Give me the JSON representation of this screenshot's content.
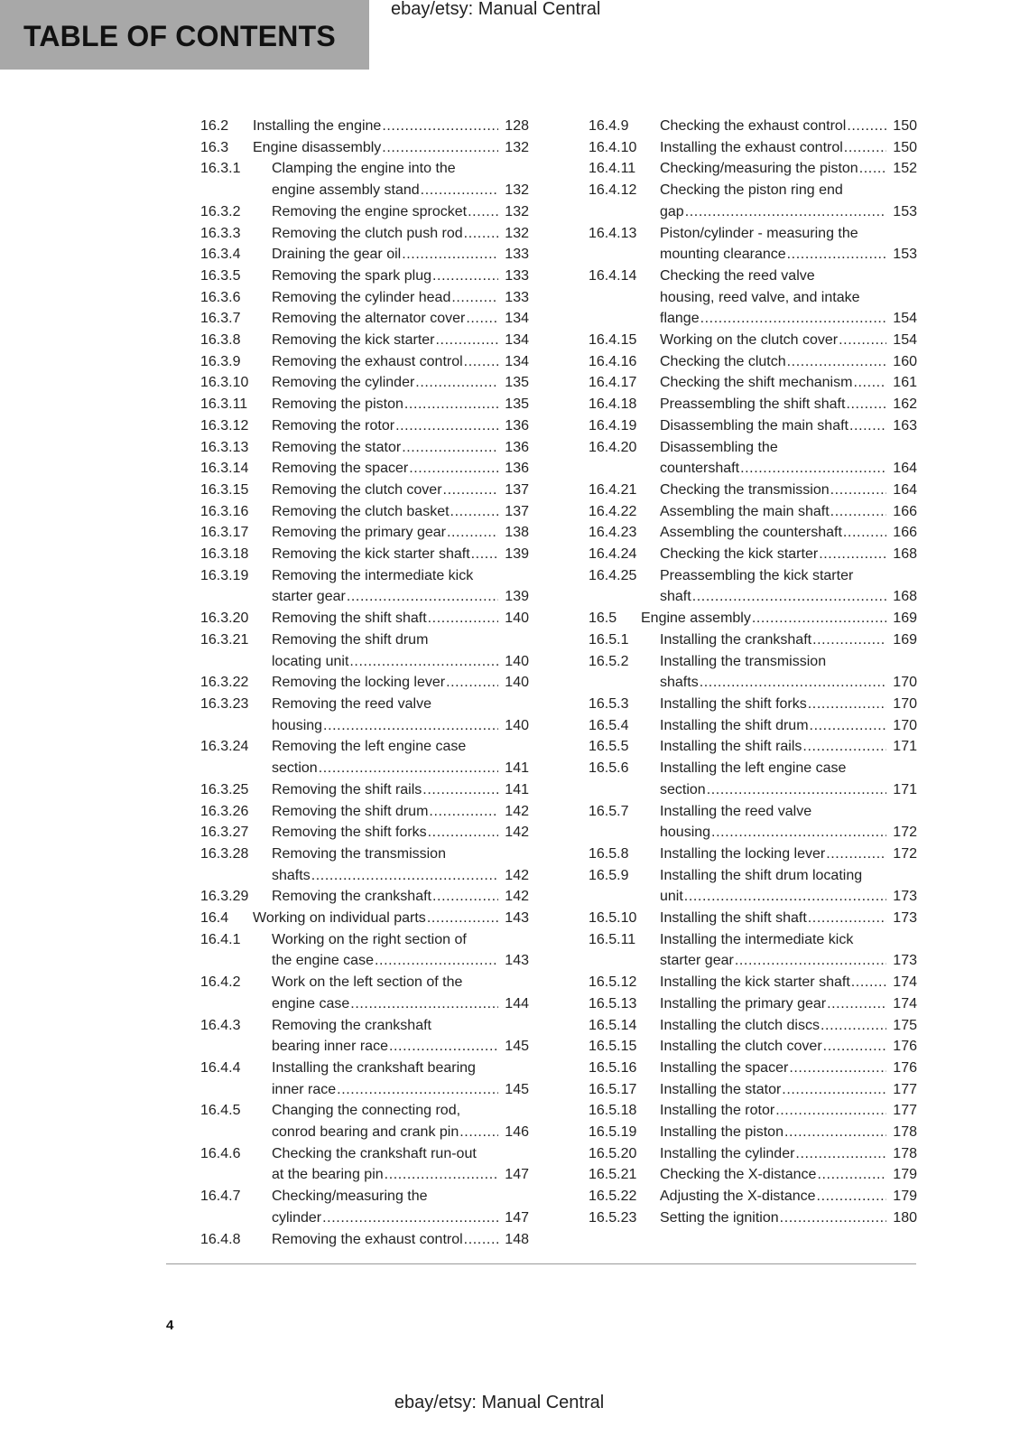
{
  "header": {
    "title": "TABLE OF CONTENTS",
    "watermark": "ebay/etsy: Manual Central"
  },
  "footer": {
    "page_number": "4",
    "watermark": "ebay/etsy: Manual Central"
  },
  "columns": [
    [
      {
        "num": "16.2",
        "level": 2,
        "lines": [
          "Installing the engine"
        ],
        "page": "128"
      },
      {
        "num": "16.3",
        "level": 2,
        "lines": [
          "Engine disassembly"
        ],
        "page": "132"
      },
      {
        "num": "16.3.1",
        "level": 3,
        "lines": [
          "Clamping the engine into the",
          "engine assembly stand"
        ],
        "page": "132"
      },
      {
        "num": "16.3.2",
        "level": 3,
        "lines": [
          "Removing the engine sprocket"
        ],
        "page": "132"
      },
      {
        "num": "16.3.3",
        "level": 3,
        "lines": [
          "Removing the clutch push rod"
        ],
        "page": "132"
      },
      {
        "num": "16.3.4",
        "level": 3,
        "lines": [
          "Draining the gear oil"
        ],
        "page": "133"
      },
      {
        "num": "16.3.5",
        "level": 3,
        "lines": [
          "Removing the spark plug"
        ],
        "page": "133"
      },
      {
        "num": "16.3.6",
        "level": 3,
        "lines": [
          "Removing the cylinder head"
        ],
        "page": "133"
      },
      {
        "num": "16.3.7",
        "level": 3,
        "lines": [
          "Removing the alternator cover"
        ],
        "page": "134"
      },
      {
        "num": "16.3.8",
        "level": 3,
        "lines": [
          "Removing the kick starter"
        ],
        "page": "134"
      },
      {
        "num": "16.3.9",
        "level": 3,
        "lines": [
          "Removing the exhaust control"
        ],
        "page": "134"
      },
      {
        "num": "16.3.10",
        "level": 3,
        "lines": [
          "Removing the cylinder"
        ],
        "page": "135"
      },
      {
        "num": "16.3.11",
        "level": 3,
        "lines": [
          "Removing the piston"
        ],
        "page": "135"
      },
      {
        "num": "16.3.12",
        "level": 3,
        "lines": [
          "Removing the rotor"
        ],
        "page": "136"
      },
      {
        "num": "16.3.13",
        "level": 3,
        "lines": [
          "Removing the stator"
        ],
        "page": "136"
      },
      {
        "num": "16.3.14",
        "level": 3,
        "lines": [
          "Removing the spacer"
        ],
        "page": "136"
      },
      {
        "num": "16.3.15",
        "level": 3,
        "lines": [
          "Removing the clutch cover"
        ],
        "page": "137"
      },
      {
        "num": "16.3.16",
        "level": 3,
        "lines": [
          "Removing the clutch basket"
        ],
        "page": "137"
      },
      {
        "num": "16.3.17",
        "level": 3,
        "lines": [
          "Removing the primary gear"
        ],
        "page": "138"
      },
      {
        "num": "16.3.18",
        "level": 3,
        "lines": [
          "Removing the kick starter shaft"
        ],
        "page": "139"
      },
      {
        "num": "16.3.19",
        "level": 3,
        "lines": [
          "Removing the intermediate kick",
          "starter gear"
        ],
        "page": "139"
      },
      {
        "num": "16.3.20",
        "level": 3,
        "lines": [
          "Removing the shift shaft"
        ],
        "page": "140"
      },
      {
        "num": "16.3.21",
        "level": 3,
        "lines": [
          "Removing the shift drum",
          "locating unit"
        ],
        "page": "140"
      },
      {
        "num": "16.3.22",
        "level": 3,
        "lines": [
          "Removing the locking lever"
        ],
        "page": "140"
      },
      {
        "num": "16.3.23",
        "level": 3,
        "lines": [
          "Removing the reed valve",
          "housing"
        ],
        "page": "140"
      },
      {
        "num": "16.3.24",
        "level": 3,
        "lines": [
          "Removing the left engine case",
          "section"
        ],
        "page": "141"
      },
      {
        "num": "16.3.25",
        "level": 3,
        "lines": [
          "Removing the shift rails"
        ],
        "page": "141"
      },
      {
        "num": "16.3.26",
        "level": 3,
        "lines": [
          "Removing the shift drum"
        ],
        "page": "142"
      },
      {
        "num": "16.3.27",
        "level": 3,
        "lines": [
          "Removing the shift forks"
        ],
        "page": "142"
      },
      {
        "num": "16.3.28",
        "level": 3,
        "lines": [
          "Removing the transmission",
          "shafts"
        ],
        "page": "142"
      },
      {
        "num": "16.3.29",
        "level": 3,
        "lines": [
          "Removing the crankshaft"
        ],
        "page": "142"
      },
      {
        "num": "16.4",
        "level": 2,
        "lines": [
          "Working on individual parts"
        ],
        "page": "143"
      },
      {
        "num": "16.4.1",
        "level": 3,
        "lines": [
          "Working on the right section of",
          "the engine case"
        ],
        "page": "143"
      },
      {
        "num": "16.4.2",
        "level": 3,
        "lines": [
          "Work on the left section of the",
          "engine case"
        ],
        "page": "144"
      },
      {
        "num": "16.4.3",
        "level": 3,
        "lines": [
          "Removing the crankshaft",
          "bearing inner race"
        ],
        "page": "145"
      },
      {
        "num": "16.4.4",
        "level": 3,
        "lines": [
          "Installing the crankshaft bearing",
          "inner race"
        ],
        "page": "145"
      },
      {
        "num": "16.4.5",
        "level": 3,
        "lines": [
          "Changing the connecting rod,",
          "conrod bearing and crank pin"
        ],
        "page": "146"
      },
      {
        "num": "16.4.6",
        "level": 3,
        "lines": [
          "Checking the crankshaft run-out",
          "at the bearing pin"
        ],
        "page": "147"
      },
      {
        "num": "16.4.7",
        "level": 3,
        "lines": [
          "Checking/measuring the",
          "cylinder"
        ],
        "page": "147"
      },
      {
        "num": "16.4.8",
        "level": 3,
        "lines": [
          "Removing the exhaust control"
        ],
        "page": "148"
      }
    ],
    [
      {
        "num": "16.4.9",
        "level": 3,
        "lines": [
          "Checking the exhaust control"
        ],
        "page": "150"
      },
      {
        "num": "16.4.10",
        "level": 3,
        "lines": [
          "Installing the exhaust control"
        ],
        "page": "150"
      },
      {
        "num": "16.4.11",
        "level": 3,
        "lines": [
          "Checking/measuring the piston"
        ],
        "page": "152"
      },
      {
        "num": "16.4.12",
        "level": 3,
        "lines": [
          "Checking the piston ring end",
          "gap"
        ],
        "page": "153"
      },
      {
        "num": "16.4.13",
        "level": 3,
        "lines": [
          "Piston/cylinder - measuring the",
          "mounting clearance"
        ],
        "page": "153"
      },
      {
        "num": "16.4.14",
        "level": 3,
        "lines": [
          "Checking the reed valve",
          "housing, reed valve, and intake",
          "flange"
        ],
        "page": "154"
      },
      {
        "num": "16.4.15",
        "level": 3,
        "lines": [
          "Working on the clutch cover"
        ],
        "page": "154"
      },
      {
        "num": "16.4.16",
        "level": 3,
        "lines": [
          "Checking the clutch"
        ],
        "page": "160"
      },
      {
        "num": "16.4.17",
        "level": 3,
        "lines": [
          "Checking the shift mechanism"
        ],
        "page": "161"
      },
      {
        "num": "16.4.18",
        "level": 3,
        "lines": [
          "Preassembling the shift shaft"
        ],
        "page": "162"
      },
      {
        "num": "16.4.19",
        "level": 3,
        "lines": [
          "Disassembling the main shaft"
        ],
        "page": "163"
      },
      {
        "num": "16.4.20",
        "level": 3,
        "lines": [
          "Disassembling the",
          "countershaft"
        ],
        "page": "164"
      },
      {
        "num": "16.4.21",
        "level": 3,
        "lines": [
          "Checking the transmission"
        ],
        "page": "164"
      },
      {
        "num": "16.4.22",
        "level": 3,
        "lines": [
          "Assembling the main shaft"
        ],
        "page": "166"
      },
      {
        "num": "16.4.23",
        "level": 3,
        "lines": [
          "Assembling the countershaft"
        ],
        "page": "166"
      },
      {
        "num": "16.4.24",
        "level": 3,
        "lines": [
          "Checking the kick starter"
        ],
        "page": "168"
      },
      {
        "num": "16.4.25",
        "level": 3,
        "lines": [
          "Preassembling the kick starter",
          "shaft"
        ],
        "page": "168"
      },
      {
        "num": "16.5",
        "level": 2,
        "lines": [
          "Engine assembly"
        ],
        "page": "169"
      },
      {
        "num": "16.5.1",
        "level": 3,
        "lines": [
          "Installing the crankshaft"
        ],
        "page": "169"
      },
      {
        "num": "16.5.2",
        "level": 3,
        "lines": [
          "Installing the transmission",
          "shafts"
        ],
        "page": "170"
      },
      {
        "num": "16.5.3",
        "level": 3,
        "lines": [
          "Installing the shift forks"
        ],
        "page": "170"
      },
      {
        "num": "16.5.4",
        "level": 3,
        "lines": [
          "Installing the shift drum"
        ],
        "page": "170"
      },
      {
        "num": "16.5.5",
        "level": 3,
        "lines": [
          "Installing the shift rails"
        ],
        "page": "171"
      },
      {
        "num": "16.5.6",
        "level": 3,
        "lines": [
          "Installing the left engine case",
          "section"
        ],
        "page": "171"
      },
      {
        "num": "16.5.7",
        "level": 3,
        "lines": [
          "Installing the reed valve",
          "housing"
        ],
        "page": "172"
      },
      {
        "num": "16.5.8",
        "level": 3,
        "lines": [
          "Installing the locking lever"
        ],
        "page": "172"
      },
      {
        "num": "16.5.9",
        "level": 3,
        "lines": [
          "Installing the shift drum locating",
          "unit"
        ],
        "page": "173"
      },
      {
        "num": "16.5.10",
        "level": 3,
        "lines": [
          "Installing the shift shaft"
        ],
        "page": "173"
      },
      {
        "num": "16.5.11",
        "level": 3,
        "lines": [
          "Installing the intermediate kick",
          "starter gear"
        ],
        "page": "173"
      },
      {
        "num": "16.5.12",
        "level": 3,
        "lines": [
          "Installing the kick starter shaft"
        ],
        "page": "174"
      },
      {
        "num": "16.5.13",
        "level": 3,
        "lines": [
          "Installing the primary gear"
        ],
        "page": "174"
      },
      {
        "num": "16.5.14",
        "level": 3,
        "lines": [
          "Installing the clutch discs"
        ],
        "page": "175"
      },
      {
        "num": "16.5.15",
        "level": 3,
        "lines": [
          "Installing the clutch cover"
        ],
        "page": "176"
      },
      {
        "num": "16.5.16",
        "level": 3,
        "lines": [
          "Installing the spacer"
        ],
        "page": "176"
      },
      {
        "num": "16.5.17",
        "level": 3,
        "lines": [
          "Installing the stator"
        ],
        "page": "177"
      },
      {
        "num": "16.5.18",
        "level": 3,
        "lines": [
          "Installing the rotor"
        ],
        "page": "177"
      },
      {
        "num": "16.5.19",
        "level": 3,
        "lines": [
          "Installing the piston"
        ],
        "page": "178"
      },
      {
        "num": "16.5.20",
        "level": 3,
        "lines": [
          "Installing the cylinder"
        ],
        "page": "178"
      },
      {
        "num": "16.5.21",
        "level": 3,
        "lines": [
          "Checking the X-distance"
        ],
        "page": "179"
      },
      {
        "num": "16.5.22",
        "level": 3,
        "lines": [
          "Adjusting the X-distance"
        ],
        "page": "179"
      },
      {
        "num": "16.5.23",
        "level": 3,
        "lines": [
          "Setting the ignition"
        ],
        "page": "180"
      }
    ]
  ]
}
